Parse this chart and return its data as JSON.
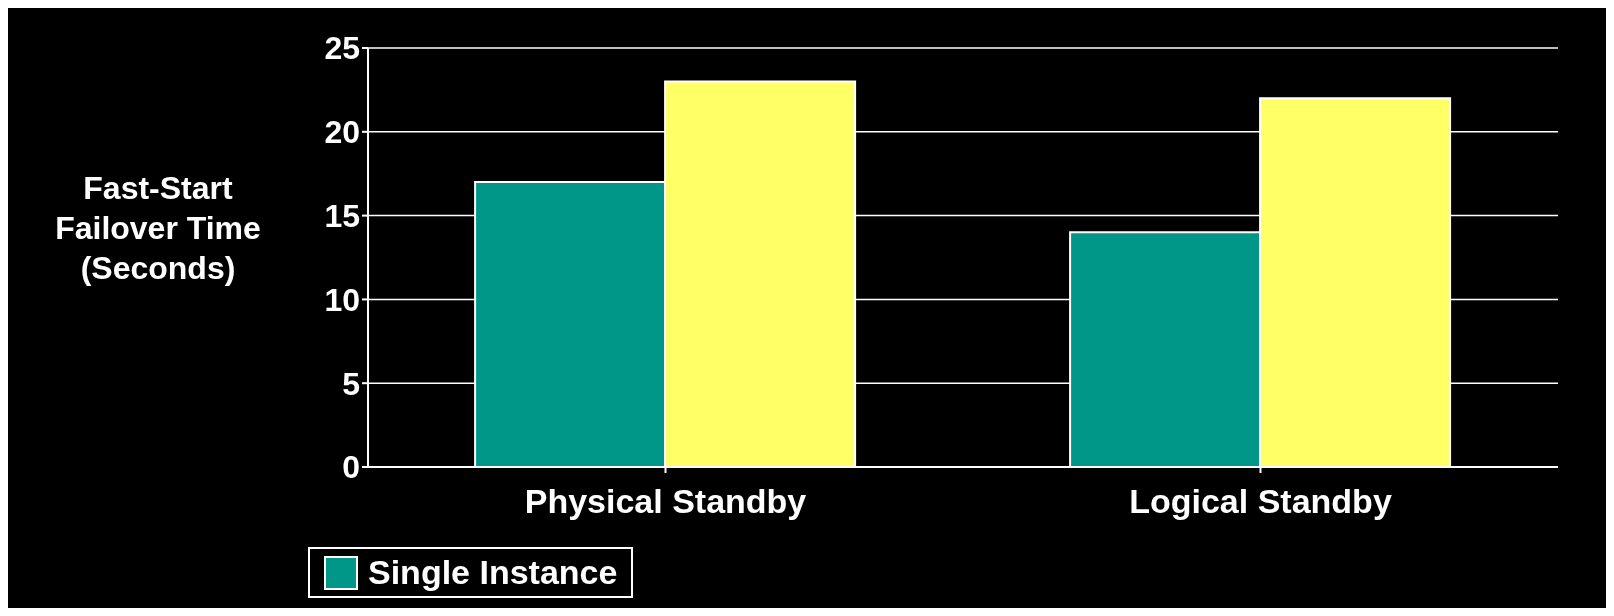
{
  "chart_data": {
    "type": "bar",
    "ylabel": "Fast-Start\nFailover Time\n(Seconds)",
    "categories": [
      "Physical Standby",
      "Logical Standby"
    ],
    "series": [
      {
        "name": "Single Instance",
        "color": "#009688",
        "values": [
          17,
          14
        ]
      },
      {
        "color": "#ffff66",
        "values": [
          23,
          22
        ]
      }
    ],
    "ylim": [
      0,
      25
    ],
    "yticks": [
      0,
      5,
      10,
      15,
      20,
      25
    ],
    "grid": "y",
    "legend": "bottom"
  }
}
